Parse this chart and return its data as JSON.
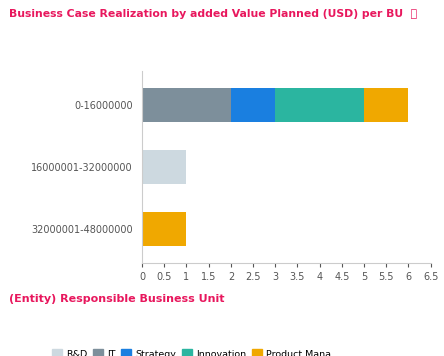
{
  "title": "Business Case Realization by added Value Planned (USD) per BU  ⓘ",
  "title_color": "#e8175d",
  "xlabel_label": "(Entity) Responsible Business Unit",
  "xlabel_color": "#e8175d",
  "categories": [
    "0-16000000",
    "16000001-32000000",
    "32000001-48000000"
  ],
  "series": [
    {
      "name": "R&D",
      "color": "#cdd9e0",
      "values": [
        0,
        1,
        0
      ]
    },
    {
      "name": "IT",
      "color": "#7d8f9b",
      "values": [
        2,
        0,
        0
      ]
    },
    {
      "name": "Strategy",
      "color": "#1a7fe0",
      "values": [
        1,
        0,
        0
      ]
    },
    {
      "name": "Innovation",
      "color": "#2bb5a0",
      "values": [
        2,
        0,
        0
      ]
    },
    {
      "name": "Product Mana...",
      "color": "#f0a800",
      "values": [
        1,
        0,
        1
      ]
    }
  ],
  "xlim": [
    0,
    6.5
  ],
  "xticks": [
    0,
    0.5,
    1,
    1.5,
    2,
    2.5,
    3,
    3.5,
    4,
    4.5,
    5,
    5.5,
    6,
    6.5
  ],
  "bar_height": 0.55,
  "background_color": "#ffffff"
}
